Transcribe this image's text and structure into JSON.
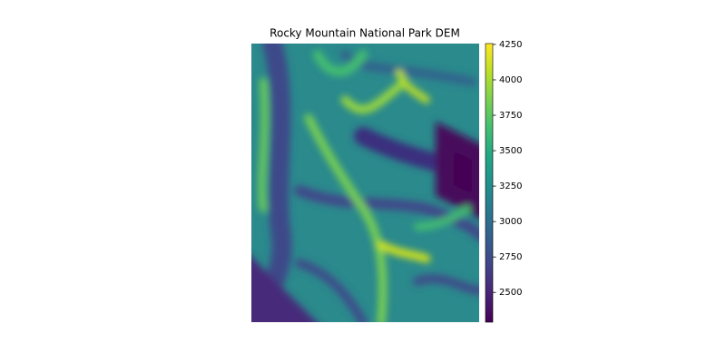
{
  "chart_data": {
    "type": "heatmap",
    "title": "Rocky Mountain National Park DEM",
    "colormap": "viridis",
    "clim": [
      2290,
      4256
    ],
    "cticks": [
      2500,
      2750,
      3000,
      3250,
      3500,
      3750,
      4000,
      4250
    ]
  }
}
